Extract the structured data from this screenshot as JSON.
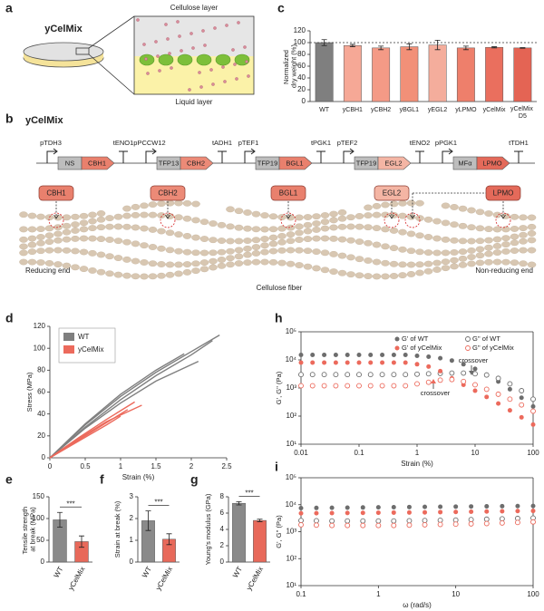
{
  "panel_labels": [
    "a",
    "b",
    "c",
    "d",
    "e",
    "f",
    "g",
    "h",
    "i"
  ],
  "diagram_a": {
    "strain": "yCelMix",
    "top_layer": "Cellulose layer",
    "bottom_layer": "Liquid layer"
  },
  "diagram_b": {
    "strain": "yCelMix",
    "cassettes": [
      {
        "promoter": "pTDH3",
        "signal": "NS",
        "gene": "CBH1",
        "terminator": "tENO1"
      },
      {
        "promoter": "pPCCW12",
        "signal": "TFP13",
        "gene": "CBH2",
        "terminator": "tADH1"
      },
      {
        "promoter": "pTEF1",
        "signal": "TFP19",
        "gene": "BGL1",
        "terminator": "tPGK1"
      },
      {
        "promoter": "pTEF2",
        "signal": "TFP19",
        "gene": "EGL2",
        "terminator": "tENO2"
      },
      {
        "promoter": "pPGK1",
        "signal": "MFα",
        "gene": "LPMO",
        "terminator": "tTDH1"
      }
    ],
    "enzymes": [
      "CBH1",
      "CBH2",
      "BGL1",
      "EGL2",
      "LPMO"
    ],
    "left_end": "Reducing end",
    "right_end": "Non-reducing end",
    "fiber": "Cellulose fiber"
  },
  "chart_data": [
    {
      "type": "bar",
      "ylabel": "Normalized dry weight (%)",
      "categories": [
        "WT",
        "yCBH1",
        "yCBH2",
        "yBGL1",
        "yEGL2",
        "yLPMO",
        "yCelMix",
        "yCelMix D5"
      ],
      "values": [
        100,
        95,
        91,
        93,
        96,
        91,
        92,
        91
      ],
      "errors": [
        5,
        2,
        3,
        5,
        8,
        3,
        1,
        0.5
      ],
      "colors": [
        "#7f7f7f",
        "#f6a896",
        "#f49a86",
        "#f29078",
        "#f4ad9c",
        "#ee7f6b",
        "#ea6f5e",
        "#e46454"
      ],
      "ylim": [
        0,
        120
      ],
      "yticks": [
        0,
        20,
        40,
        60,
        80,
        100,
        120
      ],
      "ref_line": 100,
      "ref_color": "#d62728"
    },
    {
      "type": "line",
      "xlabel": "Strain (%)",
      "ylabel": "Stress (MPa)",
      "xlim": [
        0,
        2.5
      ],
      "xticks": [
        0,
        0.5,
        1,
        1.5,
        2,
        2.5
      ],
      "ylim": [
        0,
        120
      ],
      "yticks": [
        0,
        20,
        40,
        60,
        80,
        100,
        120
      ],
      "legend": "upper left",
      "series": [
        {
          "name": "WT",
          "color": "#7f7f7f",
          "curves": [
            {
              "x": [
                0,
                0.5,
                1,
                1.5,
                2,
                2.4
              ],
              "y": [
                0,
                30,
                56,
                78,
                97,
                112
              ]
            },
            {
              "x": [
                0,
                0.5,
                1,
                1.5,
                2,
                2.3
              ],
              "y": [
                0,
                28,
                53,
                75,
                94,
                107
              ]
            },
            {
              "x": [
                0,
                0.5,
                1,
                1.5,
                1.9
              ],
              "y": [
                0,
                31,
                58,
                80,
                95
              ]
            },
            {
              "x": [
                0,
                0.5,
                1,
                1.5,
                2.1
              ],
              "y": [
                0,
                27,
                50,
                70,
                88
              ]
            }
          ]
        },
        {
          "name": "yCelMix",
          "color": "#ec6a5c",
          "curves": [
            {
              "x": [
                0,
                0.4,
                0.8,
                1.2
              ],
              "y": [
                0,
                18,
                35,
                51
              ]
            },
            {
              "x": [
                0,
                0.4,
                0.8,
                1.1
              ],
              "y": [
                0,
                16,
                32,
                44
              ]
            },
            {
              "x": [
                0,
                0.4,
                0.8,
                1.3
              ],
              "y": [
                0,
                17,
                33,
                48
              ]
            },
            {
              "x": [
                0,
                0.4,
                0.8,
                1.0
              ],
              "y": [
                0,
                15,
                30,
                38
              ]
            }
          ]
        }
      ]
    },
    {
      "type": "bar",
      "ylabel": "Tensile strength at break (MPa)",
      "categories": [
        "WT",
        "yCelMix"
      ],
      "values": [
        97,
        47
      ],
      "errors": [
        17,
        13
      ],
      "colors": [
        "#8a8a8a",
        "#e8695a"
      ],
      "ylim": [
        0,
        150
      ],
      "yticks": [
        0,
        50,
        100,
        150
      ],
      "annotation": "***"
    },
    {
      "type": "bar",
      "ylabel": "Strain at break (%)",
      "categories": [
        "WT",
        "yCelMix"
      ],
      "values": [
        1.9,
        1.05
      ],
      "errors": [
        0.45,
        0.25
      ],
      "colors": [
        "#8a8a8a",
        "#e8695a"
      ],
      "ylim": [
        0,
        3
      ],
      "yticks": [
        0,
        1,
        2,
        3
      ],
      "annotation": "***"
    },
    {
      "type": "bar",
      "ylabel": "Young's modulus (GPa)",
      "categories": [
        "WT",
        "yCelMix"
      ],
      "values": [
        7.2,
        5.1
      ],
      "errors": [
        0.2,
        0.15
      ],
      "colors": [
        "#8a8a8a",
        "#e8695a"
      ],
      "ylim": [
        0,
        8
      ],
      "yticks": [
        0,
        2,
        4,
        6,
        8
      ],
      "annotation": "***"
    },
    {
      "type": "scatter",
      "xlabel": "Strain (%)",
      "ylabel": "G', G'' (Pa)",
      "xscale": "log",
      "yscale": "log",
      "xlim": [
        0.01,
        100
      ],
      "xticks": [
        0.01,
        0.1,
        1,
        10,
        100
      ],
      "ylim": [
        10,
        100000
      ],
      "yticks": [
        {
          "value": 10,
          "label": "10¹"
        },
        {
          "value": 100,
          "label": "10²"
        },
        {
          "value": 1000,
          "label": "10³"
        },
        {
          "value": 10000,
          "label": "10⁴"
        },
        {
          "value": 100000,
          "label": "10⁵"
        }
      ],
      "legend": "upper right",
      "x": [
        0.01,
        0.0158,
        0.0251,
        0.0398,
        0.0631,
        0.1,
        0.158,
        0.251,
        0.398,
        0.631,
        1,
        1.58,
        2.51,
        3.98,
        6.31,
        10,
        15.8,
        25.1,
        39.8,
        63.1,
        100
      ],
      "series": [
        {
          "name": "G' of WT",
          "color": "#6d6d6d",
          "marker": "filled",
          "values": [
            15000,
            15000,
            15000,
            15000,
            15000,
            15000,
            15000,
            15000,
            15000,
            15000,
            14000,
            13000,
            11500,
            9500,
            7000,
            4800,
            3000,
            1700,
            900,
            450,
            220
          ]
        },
        {
          "name": "G'' of WT",
          "color": "#6d6d6d",
          "marker": "open",
          "values": [
            3000,
            3000,
            3000,
            3000,
            3000,
            3000,
            3000,
            3000,
            3000,
            3000,
            3100,
            3200,
            3300,
            3400,
            3400,
            3200,
            2900,
            2200,
            1400,
            800,
            400
          ]
        },
        {
          "name": "G' of yCelMix",
          "color": "#ec6a5c",
          "marker": "filled",
          "values": [
            8000,
            8000,
            8000,
            8000,
            8000,
            8000,
            8000,
            8000,
            8000,
            8000,
            7000,
            5800,
            4000,
            2200,
            1300,
            800,
            480,
            280,
            160,
            90,
            50
          ]
        },
        {
          "name": "G'' of yCelMix",
          "color": "#ec6a5c",
          "marker": "open",
          "values": [
            1200,
            1200,
            1200,
            1200,
            1200,
            1200,
            1200,
            1200,
            1200,
            1200,
            1400,
            1600,
            1900,
            2000,
            1700,
            1300,
            900,
            600,
            400,
            250,
            150
          ]
        }
      ],
      "annotations": [
        {
          "text": "crossover",
          "color": "#6d6d6d"
        },
        {
          "text": "crossover",
          "color": "#ec6a5c"
        }
      ]
    },
    {
      "type": "scatter",
      "xlabel": "ω (rad/s)",
      "ylabel": "G', G'' (Pa)",
      "xscale": "log",
      "yscale": "log",
      "xlim": [
        0.1,
        100
      ],
      "xticks": [
        0.1,
        1,
        10,
        100
      ],
      "ylim": [
        10,
        100000
      ],
      "yticks": [
        {
          "value": 10,
          "label": "10¹"
        },
        {
          "value": 100,
          "label": "10²"
        },
        {
          "value": 1000,
          "label": "10³"
        },
        {
          "value": 10000,
          "label": "10⁴"
        },
        {
          "value": 100000,
          "label": "10⁵"
        }
      ],
      "x": [
        0.1,
        0.158,
        0.251,
        0.398,
        0.631,
        1,
        1.58,
        2.51,
        3.98,
        6.31,
        10,
        15.8,
        25.1,
        39.8,
        63.1,
        100
      ],
      "series": [
        {
          "color": "#6d6d6d",
          "marker": "filled",
          "values": [
            7500,
            7600,
            7700,
            7800,
            7900,
            8000,
            8100,
            8200,
            8300,
            8400,
            8500,
            8600,
            8700,
            8800,
            8900,
            9000
          ]
        },
        {
          "color": "#6d6d6d",
          "marker": "open",
          "values": [
            2600,
            2550,
            2500,
            2500,
            2500,
            2500,
            2500,
            2550,
            2600,
            2650,
            2700,
            2800,
            2900,
            3000,
            3100,
            3200
          ]
        },
        {
          "color": "#ec6a5c",
          "marker": "filled",
          "values": [
            4800,
            4850,
            4900,
            4950,
            5000,
            5050,
            5100,
            5150,
            5200,
            5300,
            5400,
            5500,
            5600,
            5700,
            5800,
            5900
          ]
        },
        {
          "color": "#ec6a5c",
          "marker": "open",
          "values": [
            1800,
            1750,
            1700,
            1700,
            1700,
            1700,
            1700,
            1750,
            1800,
            1850,
            1900,
            1950,
            2000,
            2100,
            2200,
            2300
          ]
        }
      ]
    }
  ]
}
